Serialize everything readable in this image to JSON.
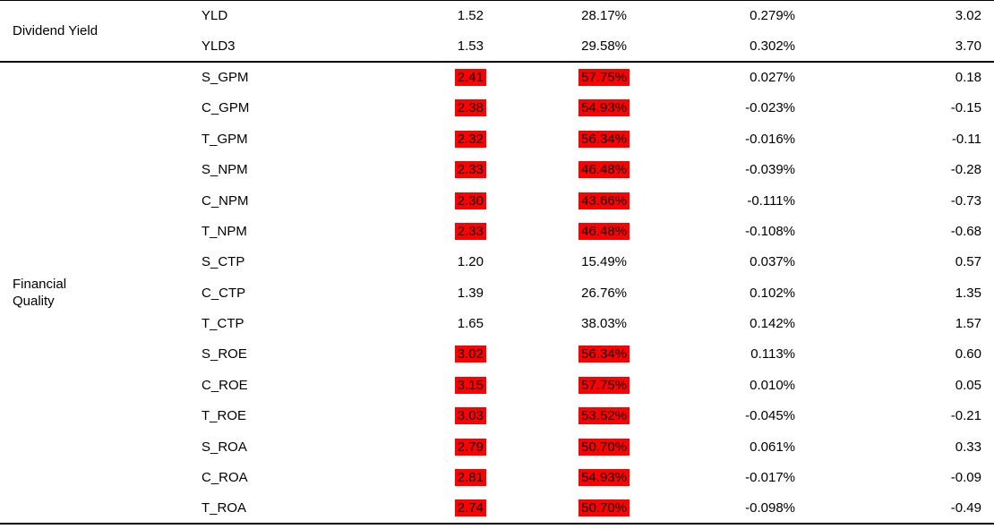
{
  "table": {
    "highlight_color": "#ff0000",
    "groups": [
      {
        "label": "Dividend Yield",
        "label_lines": [
          "Dividend Yield"
        ],
        "rows": [
          {
            "factor": "YLD",
            "values": [
              "1.52",
              "28.17%",
              "0.279%",
              "3.02"
            ],
            "highlight": false
          },
          {
            "factor": "YLD3",
            "values": [
              "1.53",
              "29.58%",
              "0.302%",
              "3.70"
            ],
            "highlight": false
          }
        ]
      },
      {
        "label": "Financial Quality",
        "label_lines": [
          "Financial",
          "Quality"
        ],
        "rows": [
          {
            "factor": "S_GPM",
            "values": [
              "2.41",
              "57.75%",
              "0.027%",
              "0.18"
            ],
            "highlight": true
          },
          {
            "factor": "C_GPM",
            "values": [
              "2.38",
              "54.93%",
              "-0.023%",
              "-0.15"
            ],
            "highlight": true
          },
          {
            "factor": "T_GPM",
            "values": [
              "2.32",
              "56.34%",
              "-0.016%",
              "-0.11"
            ],
            "highlight": true
          },
          {
            "factor": "S_NPM",
            "values": [
              "2.33",
              "46.48%",
              "-0.039%",
              "-0.28"
            ],
            "highlight": true
          },
          {
            "factor": "C_NPM",
            "values": [
              "2.30",
              "43.66%",
              "-0.111%",
              "-0.73"
            ],
            "highlight": true
          },
          {
            "factor": "T_NPM",
            "values": [
              "2.33",
              "46.48%",
              "-0.108%",
              "-0.68"
            ],
            "highlight": true
          },
          {
            "factor": "S_CTP",
            "values": [
              "1.20",
              "15.49%",
              "0.037%",
              "0.57"
            ],
            "highlight": false
          },
          {
            "factor": "C_CTP",
            "values": [
              "1.39",
              "26.76%",
              "0.102%",
              "1.35"
            ],
            "highlight": false
          },
          {
            "factor": "T_CTP",
            "values": [
              "1.65",
              "38.03%",
              "0.142%",
              "1.57"
            ],
            "highlight": false
          },
          {
            "factor": "S_ROE",
            "values": [
              "3.02",
              "56.34%",
              "0.113%",
              "0.60"
            ],
            "highlight": true
          },
          {
            "factor": "C_ROE",
            "values": [
              "3.15",
              "57.75%",
              "0.010%",
              "0.05"
            ],
            "highlight": true
          },
          {
            "factor": "T_ROE",
            "values": [
              "3.03",
              "53.52%",
              "-0.045%",
              "-0.21"
            ],
            "highlight": true
          },
          {
            "factor": "S_ROA",
            "values": [
              "2.79",
              "50.70%",
              "0.061%",
              "0.33"
            ],
            "highlight": true
          },
          {
            "factor": "C_ROA",
            "values": [
              "2.81",
              "54.93%",
              "-0.017%",
              "-0.09"
            ],
            "highlight": true
          },
          {
            "factor": "T_ROA",
            "values": [
              "2.74",
              "50.70%",
              "-0.098%",
              "-0.49"
            ],
            "highlight": true
          }
        ]
      }
    ]
  }
}
